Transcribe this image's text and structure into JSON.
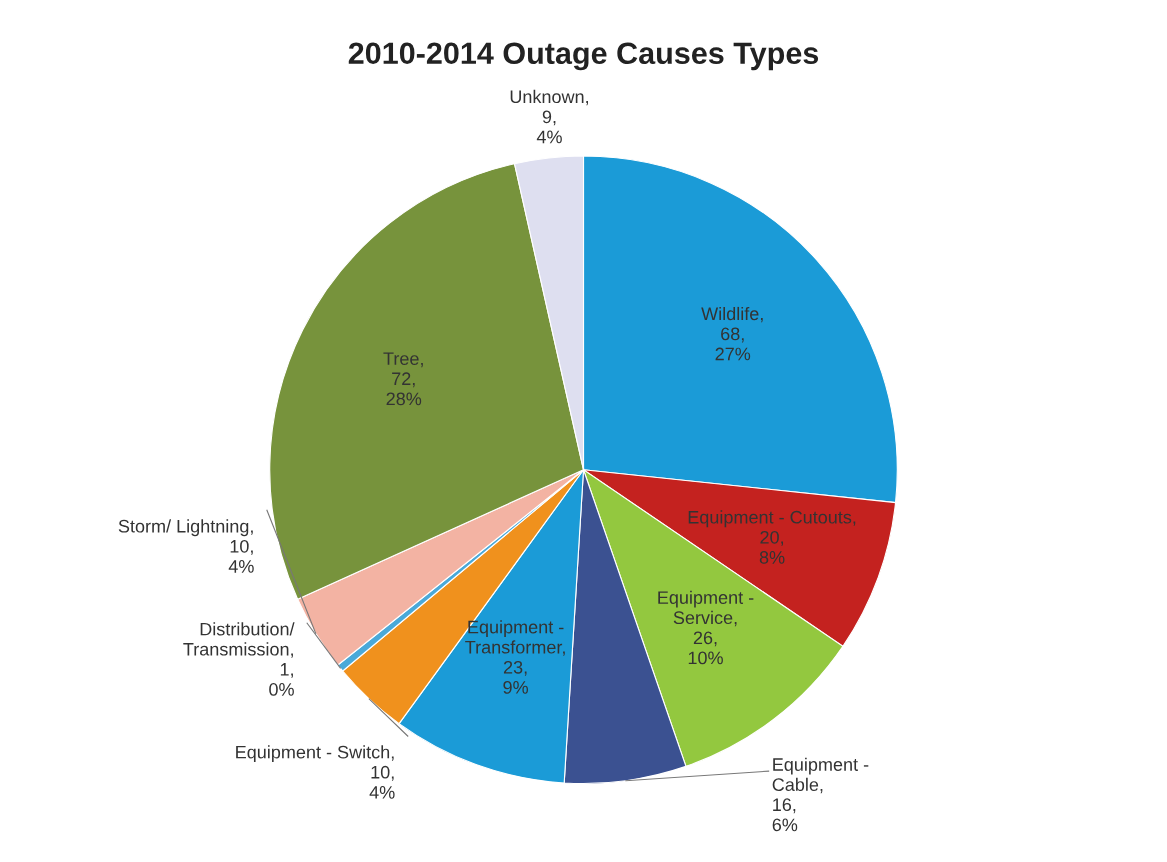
{
  "chart_data": {
    "type": "pie",
    "title": "2010-2014 Outage Causes Types",
    "categories": [
      "Wildlife",
      "Equipment - Cutouts",
      "Equipment -\nService",
      "Equipment -\nCable",
      "Equipment -\nTransformer",
      "Equipment - Switch",
      "Distribution/\nTransmission",
      "Storm/ Lightning",
      "Tree",
      "Unknown"
    ],
    "values": [
      68,
      20,
      26,
      16,
      23,
      10,
      1,
      10,
      72,
      9
    ],
    "value_labels": [
      ",\n68,\n27%",
      ",\n20,\n8%",
      ",\n26,\n10%",
      ",\n16,\n6%",
      ",\n23,\n9%",
      ",\n10,\n4%",
      ",\n1,\n0%",
      ",\n10,\n4%",
      ",\n72,\n28%",
      ",\n9,\n4%"
    ],
    "colors": [
      "#1b9bd7",
      "#c4221f",
      "#93c83f",
      "#3b5191",
      "#1b9bd7",
      "#f0911d",
      "#4aa9d9",
      "#f3b3a3",
      "#77933c",
      "#dedff0"
    ]
  }
}
